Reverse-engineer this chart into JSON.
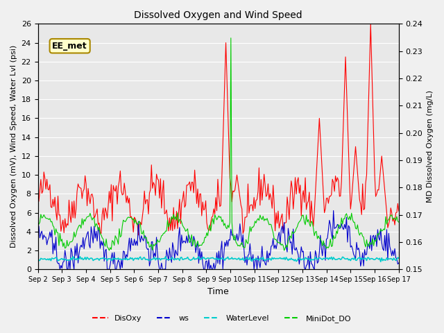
{
  "title": "Dissolved Oxygen and Wind Speed",
  "xlabel": "Time",
  "ylabel_left": "Dissolved Oxygen (mV), Wind Speed, Water Lvl (psi)",
  "ylabel_right": "MD Dissolved Oxygen (mg/L)",
  "ylim_left": [
    0,
    26
  ],
  "ylim_right": [
    0.15,
    0.24
  ],
  "annotation": "EE_met",
  "xtick_labels": [
    "Sep 2",
    "Sep 3",
    "Sep 4",
    "Sep 5",
    "Sep 6",
    "Sep 7",
    "Sep 8",
    "Sep 9",
    "Sep 10",
    "Sep 11",
    "Sep 12",
    "Sep 13",
    "Sep 14",
    "Sep 15",
    "Sep 16",
    "Sep 17"
  ],
  "legend_labels": [
    "DisOxy",
    "ws",
    "WaterLevel",
    "MiniDot_DO"
  ],
  "legend_colors": [
    "red",
    "blue",
    "cyan",
    "lime"
  ],
  "colors": {
    "DisOxy": "#ff0000",
    "ws": "#0000cc",
    "WaterLevel": "#00cccc",
    "MiniDot_DO": "#00cc00"
  },
  "bg_color": "#e8e8e8",
  "grid_color": "#ffffff"
}
